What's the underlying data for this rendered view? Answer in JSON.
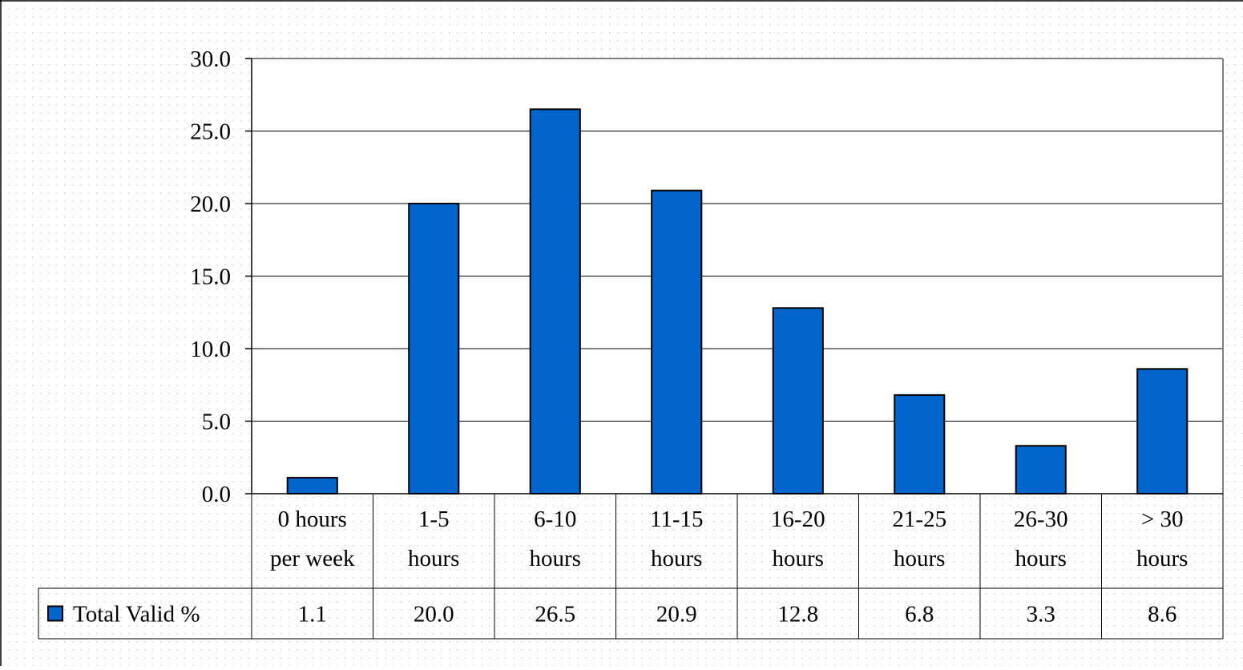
{
  "chart_data": {
    "type": "bar",
    "categories": [
      [
        "0 hours",
        "per week"
      ],
      [
        "1-5",
        "hours"
      ],
      [
        "6-10",
        "hours"
      ],
      [
        "11-15",
        "hours"
      ],
      [
        "16-20",
        "hours"
      ],
      [
        "21-25",
        "hours"
      ],
      [
        "26-30",
        "hours"
      ],
      [
        "> 30",
        "hours"
      ]
    ],
    "series": [
      {
        "name": "Total Valid %",
        "values": [
          1.1,
          20.0,
          26.5,
          20.9,
          12.8,
          6.8,
          3.3,
          8.6
        ],
        "color": "#0066cc"
      }
    ],
    "data_table": [
      "1.1",
      "20.0",
      "26.5",
      "20.9",
      "12.8",
      "6.8",
      "3.3",
      "8.6"
    ],
    "y_ticks": [
      "0.0",
      "5.0",
      "10.0",
      "15.0",
      "20.0",
      "25.0",
      "30.0"
    ],
    "ylim": [
      0,
      30
    ],
    "grid": true,
    "legend": "data-table-left"
  }
}
